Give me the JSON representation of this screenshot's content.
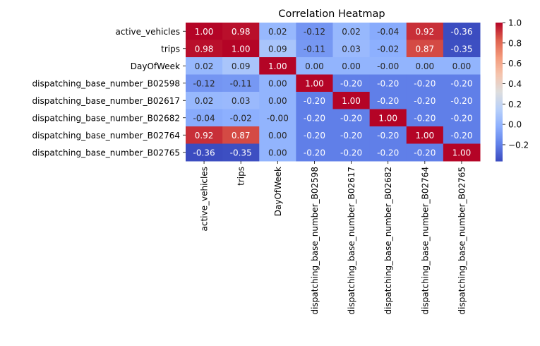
{
  "chart_data": {
    "type": "heatmap",
    "title": "Correlation Heatmap",
    "row_labels": [
      "active_vehicles",
      "trips",
      "DayOfWeek",
      "dispatching_base_number_B02598",
      "dispatching_base_number_B02617",
      "dispatching_base_number_B02682",
      "dispatching_base_number_B02764",
      "dispatching_base_number_B02765"
    ],
    "col_labels": [
      "active_vehicles",
      "trips",
      "DayOfWeek",
      "dispatching_base_number_B02598",
      "dispatching_base_number_B02617",
      "dispatching_base_number_B02682",
      "dispatching_base_number_B02764",
      "dispatching_base_number_B02765"
    ],
    "values": [
      [
        1.0,
        0.98,
        0.02,
        -0.12,
        0.02,
        -0.04,
        0.92,
        -0.36
      ],
      [
        0.98,
        1.0,
        0.09,
        -0.11,
        0.03,
        -0.02,
        0.87,
        -0.35
      ],
      [
        0.02,
        0.09,
        1.0,
        0.0,
        0.0,
        -0.0,
        0.0,
        0.0
      ],
      [
        -0.12,
        -0.11,
        0.0,
        1.0,
        -0.2,
        -0.2,
        -0.2,
        -0.2
      ],
      [
        0.02,
        0.03,
        0.0,
        -0.2,
        1.0,
        -0.2,
        -0.2,
        -0.2
      ],
      [
        -0.04,
        -0.02,
        -0.0,
        -0.2,
        -0.2,
        1.0,
        -0.2,
        -0.2
      ],
      [
        0.92,
        0.87,
        0.0,
        -0.2,
        -0.2,
        -0.2,
        1.0,
        -0.2
      ],
      [
        -0.36,
        -0.35,
        0.0,
        -0.2,
        -0.2,
        -0.2,
        -0.2,
        1.0
      ]
    ],
    "cell_text": [
      [
        "1.00",
        "0.98",
        "0.02",
        "-0.12",
        "0.02",
        "-0.04",
        "0.92",
        "-0.36"
      ],
      [
        "0.98",
        "1.00",
        "0.09",
        "-0.11",
        "0.03",
        "-0.02",
        "0.87",
        "-0.35"
      ],
      [
        "0.02",
        "0.09",
        "1.00",
        "0.00",
        "0.00",
        "-0.00",
        "0.00",
        "0.00"
      ],
      [
        "-0.12",
        "-0.11",
        "0.00",
        "1.00",
        "-0.20",
        "-0.20",
        "-0.20",
        "-0.20"
      ],
      [
        "0.02",
        "0.03",
        "0.00",
        "-0.20",
        "1.00",
        "-0.20",
        "-0.20",
        "-0.20"
      ],
      [
        "-0.04",
        "-0.02",
        "-0.00",
        "-0.20",
        "-0.20",
        "1.00",
        "-0.20",
        "-0.20"
      ],
      [
        "0.92",
        "0.87",
        "0.00",
        "-0.20",
        "-0.20",
        "-0.20",
        "1.00",
        "-0.20"
      ],
      [
        "-0.36",
        "-0.35",
        "0.00",
        "-0.20",
        "-0.20",
        "-0.20",
        "-0.20",
        "1.00"
      ]
    ],
    "colormap": "coolwarm",
    "vmin": -0.36,
    "vmax": 1.0,
    "colorbar_ticks": [
      1.0,
      0.8,
      0.6,
      0.4,
      0.2,
      0.0,
      -0.2
    ],
    "colorbar_tick_labels": [
      "1.0",
      "0.8",
      "0.6",
      "0.4",
      "0.2",
      "0.0",
      "−0.2"
    ],
    "colorbar_position": "right",
    "grid": false
  }
}
